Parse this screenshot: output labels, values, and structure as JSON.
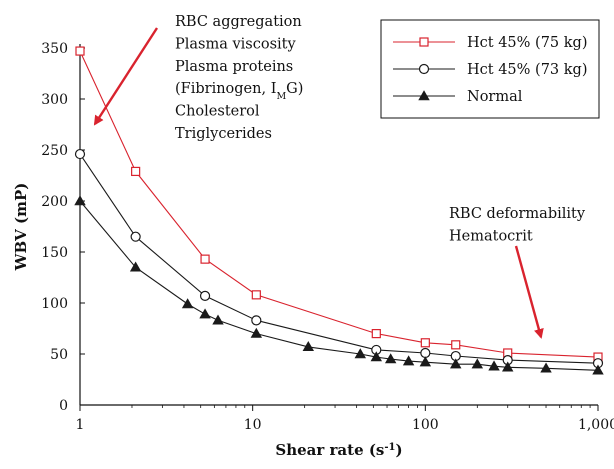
{
  "chart_data": {
    "type": "line",
    "xlabel": "Shear rate (s",
    "xlabel_sup": "-1",
    "xlabel_end": ")",
    "ylabel": "WBV (mP)",
    "xscale": "log",
    "xlim": [
      1,
      1000
    ],
    "ylim": [
      0,
      350
    ],
    "xticks": [
      1,
      10,
      100,
      1000
    ],
    "xtick_labels": [
      "1",
      "10",
      "100",
      "1,000"
    ],
    "yticks": [
      0,
      50,
      100,
      150,
      200,
      250,
      300,
      350
    ],
    "ytick_labels": [
      "0",
      "50",
      "100",
      "150",
      "200",
      "250",
      "300",
      "350"
    ],
    "grid": false,
    "legend_position": "top-right",
    "series": [
      {
        "name": "Hct 45% (75 kg)",
        "color": "#d9232e",
        "marker": "square-open",
        "x": [
          1,
          2.1,
          5.3,
          10.5,
          52,
          100,
          150,
          300,
          1000
        ],
        "y": [
          347,
          229,
          143,
          108,
          70,
          61,
          59,
          51,
          47
        ]
      },
      {
        "name": "Hct 45% (73 kg)",
        "color": "#1a1a1a",
        "marker": "circle-open",
        "x": [
          1,
          2.1,
          5.3,
          10.5,
          52,
          100,
          150,
          300,
          1000
        ],
        "y": [
          246,
          165,
          107,
          83,
          54,
          51,
          48,
          44,
          41
        ]
      },
      {
        "name": "Normal",
        "color": "#1a1a1a",
        "marker": "triangle-filled",
        "x": [
          1,
          2.1,
          4.2,
          5.3,
          6.3,
          10.5,
          21,
          42,
          52,
          63,
          80,
          100,
          150,
          200,
          250,
          300,
          500,
          1000
        ],
        "y": [
          200,
          135,
          99,
          89,
          83,
          70,
          57,
          50,
          47,
          45,
          43,
          42,
          40,
          40,
          38,
          37,
          36,
          34
        ]
      }
    ],
    "annotations": {
      "low_shear": {
        "lines": [
          "RBC aggregation",
          "Plasma viscosity",
          "Plasma proteins",
          "(Fibrinogen, I",
          "Cholesterol",
          "Triglycerides"
        ],
        "subscript": "M",
        "after_subscript": "G)"
      },
      "high_shear": {
        "lines": [
          "RBC deformability",
          "Hematocrit"
        ]
      },
      "arrow_color": "#d9232e"
    }
  }
}
